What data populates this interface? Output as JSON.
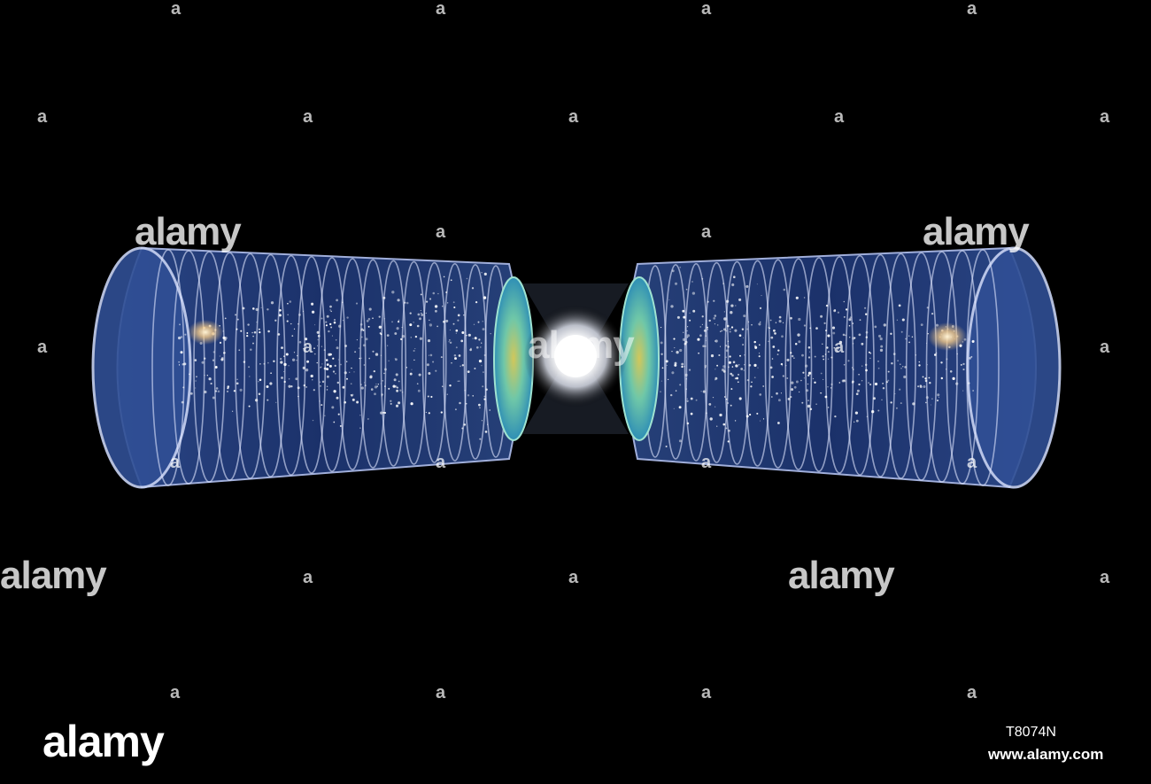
{
  "image": {
    "subject": "two tapered cylinders meeting at a bright central point",
    "colors": {
      "background": "#000000",
      "cylinder_body": "#233c7a",
      "cylinder_edge": "#a9b8e6",
      "ring": "#dfe6ff",
      "cmb_disc": "#6fc7a8",
      "core_glow": "#ffffff"
    }
  },
  "watermarks": {
    "small_mark": "a",
    "word_mark": "alamy"
  },
  "footer": {
    "logo": "alamy",
    "image_id": "T8074N",
    "site_url": "www.alamy.com"
  }
}
